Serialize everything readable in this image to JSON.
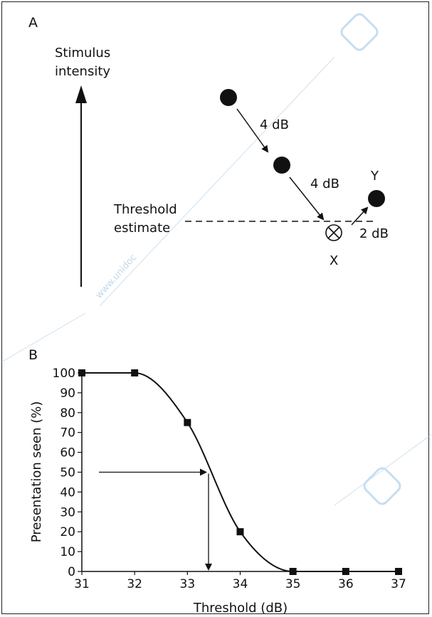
{
  "panel_a": {
    "label": "A",
    "axis_label_line1": "Stimulus",
    "axis_label_line2": "intensity",
    "threshold_label_line1": "Threshold",
    "threshold_label_line2": "estimate",
    "step1_label": "4 dB",
    "step2_label": "4 dB",
    "step3_label": "2 dB",
    "point_x_label": "X",
    "point_y_label": "Y"
  },
  "panel_b": {
    "label": "B"
  },
  "watermark": {
    "text": "www.unidoc",
    "badge_icon": "watermark-badge-icon",
    "badge_color": "#9cc3e4"
  },
  "chart_data": {
    "type": "line",
    "title": "",
    "xlabel": "Threshold (dB)",
    "ylabel": "Presentation seen (%)",
    "xlim": [
      31,
      37
    ],
    "ylim": [
      0,
      100
    ],
    "x_ticks": [
      31,
      32,
      33,
      34,
      35,
      36,
      37
    ],
    "y_ticks": [
      0,
      10,
      20,
      30,
      40,
      50,
      60,
      70,
      80,
      90,
      100
    ],
    "grid": false,
    "series": [
      {
        "x": [
          31,
          32,
          33,
          34,
          35,
          36,
          37
        ],
        "values": [
          100,
          100,
          75,
          20,
          0,
          0,
          0
        ],
        "marker": "square",
        "color": "#111111"
      }
    ],
    "annotation": {
      "y_level": 50,
      "x_threshold": 33.4
    }
  }
}
